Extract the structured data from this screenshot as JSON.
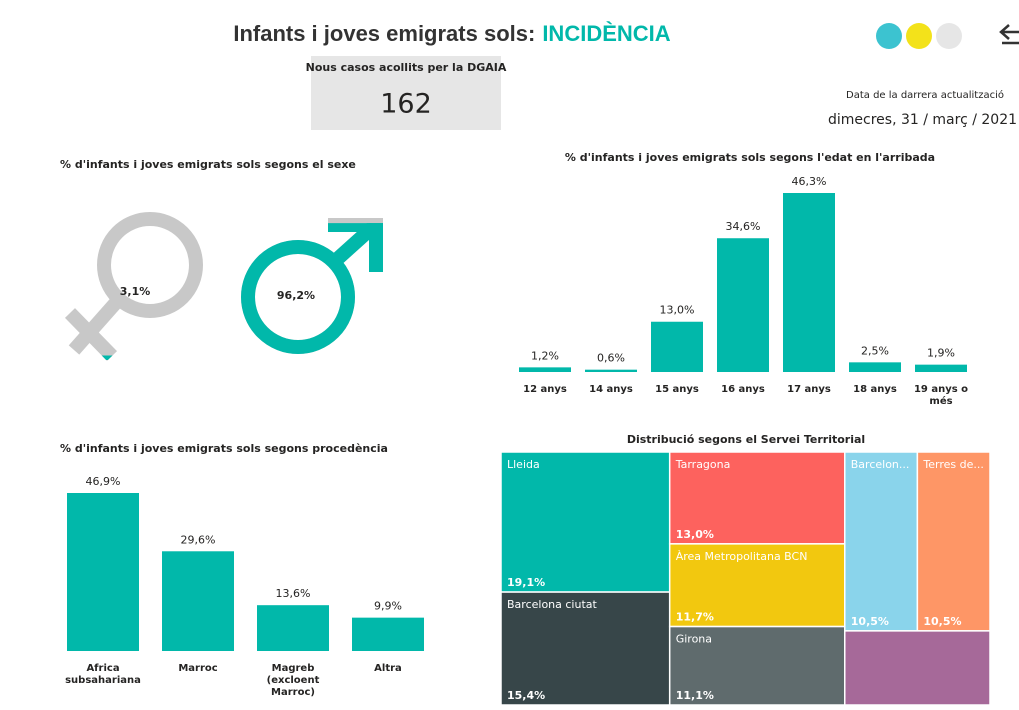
{
  "header": {
    "title": "Infants i joves emigrats sols:",
    "highlight": "INCIDÈNCIA"
  },
  "kpi": {
    "label": "Nous casos acollits per la DGAIA",
    "value": 162
  },
  "update": {
    "label": "Data de la darrera actualització",
    "date": "dimecres, 31 / març / 2021"
  },
  "chart_data": [
    {
      "type": "pictogram",
      "title": "% d'infants i joves emigrats sols segons el sexe",
      "icons": [
        "female",
        "male"
      ],
      "values": [
        3.1,
        96.2
      ],
      "value_labels": [
        "3,1%",
        "96,2%"
      ],
      "color": "#01b8aa",
      "base_color": "#c8c8c8"
    },
    {
      "type": "bar",
      "title": "% d'infants i joves emigrats sols segons l'edat en l'arribada",
      "categories": [
        "12 anys",
        "14 anys",
        "15 anys",
        "16 anys",
        "17 anys",
        "18 anys",
        "19 anys o més"
      ],
      "values": [
        1.2,
        0.6,
        13.0,
        34.6,
        46.3,
        2.5,
        1.9
      ],
      "value_labels": [
        "1,2%",
        "0,6%",
        "13,0%",
        "34,6%",
        "46,3%",
        "2,5%",
        "1,9%"
      ],
      "color": "#01b8aa"
    },
    {
      "type": "bar",
      "title": "% d'infants i joves emigrats sols segons procedència",
      "categories": [
        "Africa subsahariana",
        "Marroc",
        "Magreb (excloent Marroc)",
        "Altra"
      ],
      "values": [
        46.9,
        29.6,
        13.6,
        9.9
      ],
      "value_labels": [
        "46,9%",
        "29,6%",
        "13,6%",
        "9,9%"
      ],
      "color": "#01b8aa"
    },
    {
      "type": "treemap",
      "title": "Distribució segons el Servei Territorial",
      "categories": [
        "Lleida",
        "Barcelona ciutat",
        "Tarragona",
        "Àrea Metropolitana BCN",
        "Girona",
        "Barcelon...",
        "Terres de...",
        null
      ],
      "values": [
        19.1,
        15.4,
        13.0,
        11.7,
        11.1,
        10.5,
        10.5,
        8.7
      ],
      "value_labels": [
        "19,1%",
        "15,4%",
        "13,0%",
        "11,7%",
        "11,1%",
        "10,5%",
        "10,5%",
        null
      ],
      "colors": [
        "#01b8aa",
        "#374649",
        "#fd625e",
        "#f2c80f",
        "#5f6b6d",
        "#8ad4eb",
        "#fe9666",
        "#a66999"
      ]
    }
  ]
}
